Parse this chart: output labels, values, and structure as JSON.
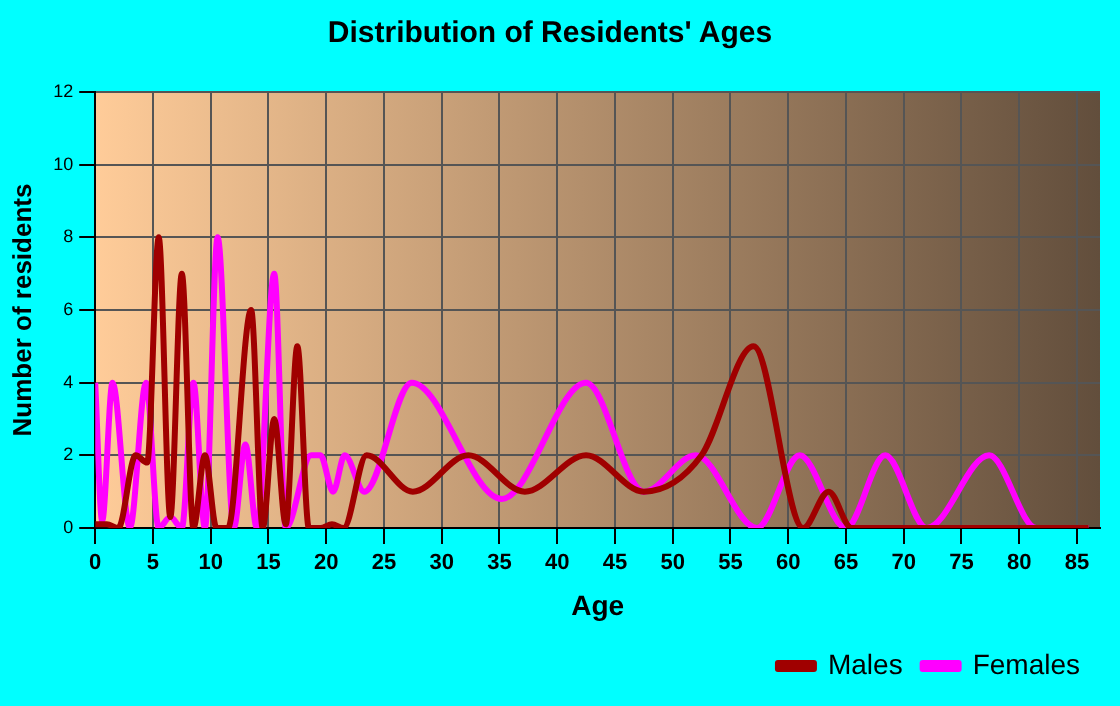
{
  "chart_data": {
    "type": "line",
    "title": "Distribution of Residents' Ages",
    "xlabel": "Age",
    "ylabel": "Number of residents",
    "xlim": [
      0,
      87
    ],
    "xticks": [
      0,
      5,
      10,
      15,
      20,
      25,
      30,
      35,
      40,
      45,
      50,
      55,
      60,
      65,
      70,
      75,
      80,
      85
    ],
    "ylim": [
      0,
      12
    ],
    "yticks": [
      0,
      2,
      4,
      6,
      8,
      10,
      12
    ],
    "grid": true,
    "legend": "bottom right",
    "marker": "none",
    "line_style": "solid",
    "series": [
      {
        "name": "Males",
        "color": "#a00000",
        "x": [
          0,
          1,
          2,
          3.5,
          4.5,
          5.5,
          6.5,
          7.5,
          8.5,
          9.5,
          10.5,
          11.5,
          13.5,
          14.5,
          15.5,
          16.5,
          17.5,
          18.5,
          19.5,
          20.5,
          21.5,
          23.5,
          27.5,
          32.3,
          37.2,
          42.5,
          47.5,
          52.5,
          57,
          61.3,
          63.5,
          65.5,
          67,
          86
        ],
        "values": [
          0.1,
          0.1,
          0,
          2,
          1.8,
          8,
          0.3,
          7,
          0,
          2,
          0,
          0,
          6,
          0,
          3,
          0.1,
          5,
          0,
          0,
          0.1,
          0,
          2,
          1,
          2,
          1,
          2,
          1,
          2,
          5,
          0,
          1,
          0,
          0,
          0
        ]
      },
      {
        "name": "Females",
        "color": "#ff00ff",
        "x": [
          0,
          0.6,
          1.5,
          3,
          4.4,
          5.5,
          6.5,
          7.5,
          8.5,
          9.5,
          10.6,
          12,
          13,
          14,
          15.5,
          16.5,
          18.7,
          19.5,
          20.6,
          21.6,
          23.3,
          27.4,
          35.2,
          42.5,
          47.5,
          52,
          57.3,
          61,
          65,
          68.4,
          72,
          77.4,
          81.5,
          86
        ],
        "values": [
          4,
          0.2,
          4,
          0,
          4,
          0,
          0.3,
          0,
          4,
          0,
          8,
          0,
          2.3,
          0,
          7,
          0,
          2,
          2,
          1,
          2,
          1,
          4,
          0.8,
          4,
          1,
          2,
          0,
          2,
          0,
          2,
          0,
          2,
          0,
          0
        ]
      }
    ]
  }
}
